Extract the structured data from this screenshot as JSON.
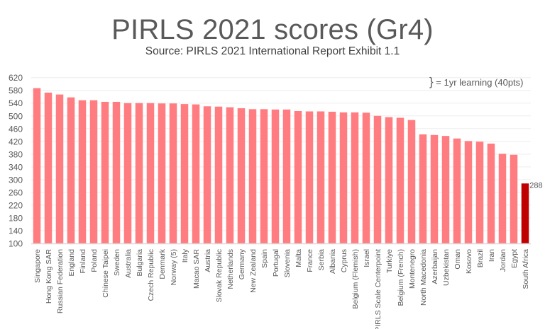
{
  "header": {
    "title": "PIRLS 2021 scores (Gr4)",
    "subtitle": "Source: PIRLS 2021 International Report Exhibit 1.1"
  },
  "annotation": {
    "brace": "}",
    "text": " = 1yr learning (40pts)"
  },
  "colors": {
    "bar": "#FF7C80",
    "highlight": "#C00000",
    "grid": "#EDEDED",
    "axis": "#D9D9D9",
    "text": "#595959"
  },
  "chart_data": {
    "type": "bar",
    "title": "PIRLS 2021 scores (Gr4)",
    "subtitle": "Source: PIRLS 2021 International Report Exhibit 1.1",
    "xlabel": "",
    "ylabel": "",
    "ylim": [
      100,
      620
    ],
    "yticks": [
      100,
      140,
      180,
      220,
      260,
      300,
      340,
      380,
      420,
      460,
      500,
      540,
      580,
      620
    ],
    "grid": true,
    "legend": "none",
    "annotation": "} = 1yr learning (40pts)",
    "data_labels": [
      {
        "category": "South Africa",
        "label": "288"
      }
    ],
    "highlighted_category": "South Africa",
    "categories": [
      "Singapore",
      "Hong Kong SAR",
      "Russian Federation",
      "England",
      "Finland",
      "Poland",
      "Chinese Taipei",
      "Sweden",
      "Australia",
      "Bulgaria",
      "Czech Republic",
      "Denmark",
      "Norway (5)",
      "Italy",
      "Macao SAR",
      "Austria",
      "Slovak Republic",
      "Netherlands",
      "Germany",
      "New Zealand",
      "Spain",
      "Portugal",
      "Slovenia",
      "Malta",
      "France",
      "Serbia",
      "Albania",
      "Cyprus",
      "Belgium (Flemish)",
      "Israel",
      "PIRLS Scale Centerpoint",
      "Turkiye",
      "Belgium (French)",
      "Montenegro",
      "North Macedonia",
      "Azerbaijan",
      "Uzbekistan",
      "Oman",
      "Kosovo",
      "Brazil",
      "Iran",
      "Jordan",
      "Egypt",
      "South Africa"
    ],
    "values": [
      587,
      573,
      567,
      558,
      549,
      549,
      544,
      544,
      540,
      540,
      540,
      539,
      539,
      537,
      536,
      530,
      529,
      527,
      524,
      521,
      521,
      520,
      520,
      515,
      514,
      514,
      513,
      511,
      511,
      510,
      500,
      496,
      494,
      487,
      442,
      440,
      437,
      429,
      421,
      419,
      413,
      381,
      378,
      288
    ]
  }
}
